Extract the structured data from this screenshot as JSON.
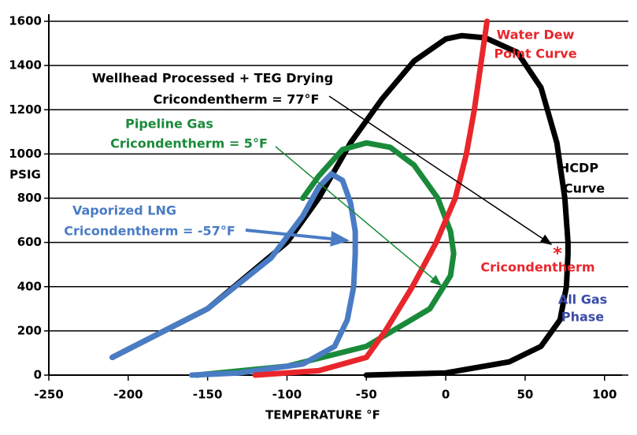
{
  "chart_data": {
    "type": "line",
    "xlabel": "TEMPERATURE °F",
    "ylabel": "PSIG",
    "xlim": [
      -250,
      115
    ],
    "ylim": [
      0,
      1600
    ],
    "xticks": [
      -250,
      -200,
      -150,
      -100,
      -50,
      0,
      50,
      100
    ],
    "yticks": [
      0,
      200,
      400,
      600,
      800,
      1000,
      1200,
      1400,
      1600
    ],
    "grid": true,
    "series": [
      {
        "color": "#000000",
        "x": [
          -210,
          -150,
          -100,
          -80,
          -60,
          -40,
          -20,
          0,
          10,
          25,
          45,
          60,
          70,
          75,
          77,
          77,
          76,
          72,
          60,
          40,
          0,
          -50
        ],
        "y": [
          80,
          300,
          600,
          800,
          1050,
          1250,
          1420,
          1520,
          1535,
          1525,
          1460,
          1300,
          1050,
          800,
          600,
          550,
          400,
          250,
          130,
          60,
          10,
          0
        ]
      },
      {
        "color": "#1a8a3a",
        "x": [
          -157,
          -100,
          -50,
          -10,
          3,
          5,
          3,
          -5,
          -20,
          -35,
          -50,
          -65,
          -80,
          -90
        ],
        "y": [
          0,
          40,
          130,
          300,
          450,
          550,
          650,
          800,
          950,
          1030,
          1050,
          1020,
          900,
          800
        ]
      },
      {
        "color": "#4a7cc4",
        "x": [
          -210,
          -150,
          -110,
          -90,
          -80,
          -72,
          -65,
          -60,
          -57,
          -57,
          -58,
          -62,
          -70,
          -90,
          -130,
          -160
        ],
        "y": [
          80,
          300,
          530,
          720,
          850,
          910,
          880,
          780,
          650,
          550,
          400,
          250,
          130,
          50,
          10,
          0
        ]
      },
      {
        "color": "#e8262b",
        "x": [
          -120,
          -80,
          -50,
          -38,
          -21,
          -6,
          6,
          13,
          18,
          22,
          26
        ],
        "y": [
          0,
          20,
          80,
          200,
          400,
          600,
          800,
          1000,
          1200,
          1400,
          1600
        ]
      }
    ],
    "annotations": [
      {
        "lines": [
          "Wellhead Processed + TEG Drying",
          "Cricondentherm = 77°F"
        ],
        "color": "#000000"
      },
      {
        "lines": [
          "Pipeline Gas",
          "Cricondentherm = 5°F"
        ],
        "color": "#1a8a3a"
      },
      {
        "lines": [
          "Vaporized LNG",
          "Cricondentherm = -57°F"
        ],
        "color": "#4a7cc4"
      },
      {
        "lines": [
          "Water Dew",
          "Point Curve"
        ],
        "color": "#e8262b"
      },
      {
        "lines": [
          "HCDP",
          "Curve"
        ],
        "color": "#000000"
      },
      {
        "lines": [
          "Cricondentherm"
        ],
        "color": "#e8262b"
      },
      {
        "lines": [
          "All Gas",
          "Phase"
        ],
        "color": "#3a4aa8"
      },
      {
        "lines": [
          "*"
        ],
        "color": "#e8262b"
      }
    ]
  }
}
